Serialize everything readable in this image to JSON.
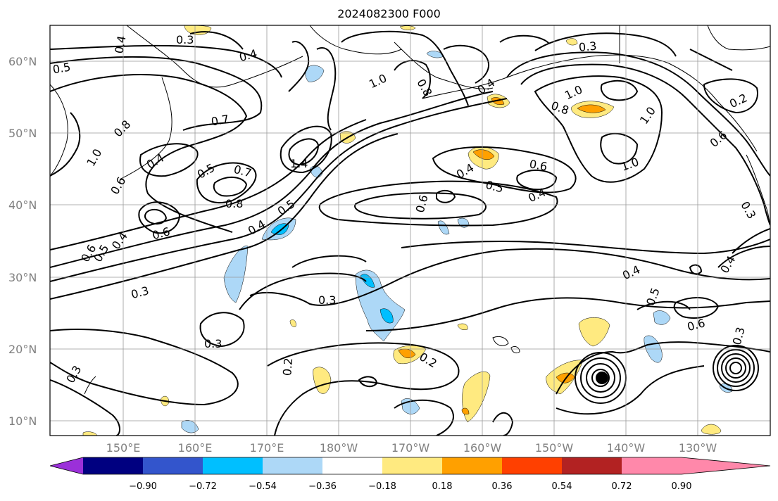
{
  "title": "2024082300 F000",
  "latitude_labels": [
    "60°N",
    "50°N",
    "40°N",
    "30°N",
    "20°N",
    "10°N"
  ],
  "longitude_labels": [
    "150°E",
    "160°E",
    "170°E",
    "180°W",
    "170°W",
    "160°W",
    "150°W",
    "140°W",
    "130°W"
  ],
  "colorbar": {
    "tick_labels": [
      "−0.90",
      "−0.72",
      "−0.54",
      "−0.36",
      "−0.18",
      "0.18",
      "0.36",
      "0.54",
      "0.72",
      "0.90"
    ],
    "colors": [
      "#9b30d9",
      "#000080",
      "#3355cc",
      "#00bfff",
      "#add8f7",
      "#ffffff",
      "#ffea80",
      "#ffa000",
      "#ff4000",
      "#b22222",
      "#ff88aa"
    ]
  },
  "fill_colors": {
    "light_blue": "#add8f7",
    "blue": "#00bfff",
    "yellow": "#ffea80",
    "orange": "#ffa000",
    "red_orange": "#ff4000"
  },
  "contour_labels": [
    "0.3",
    "0.4",
    "0.5",
    "0.8",
    "1.0",
    "0.6",
    "0.4",
    "0.7",
    "0.4",
    "0.5",
    "0.7",
    "0.8",
    "1.4",
    "0.5",
    "0.4",
    "0.6",
    "0.4",
    "0.5",
    "0.6",
    "0.3",
    "0.3",
    "0.3",
    "0.3",
    "0.2",
    "1.0",
    "0.8",
    "0.4",
    "0.3",
    "1.0",
    "0.8",
    "0.4",
    "0.6",
    "0.5",
    "0.4",
    "0.6",
    "1.0",
    "1.0",
    "0.2",
    "0.3",
    "0.4",
    "0.5",
    "0.6",
    "0.3",
    "0.4",
    "0.2",
    "0.6"
  ]
}
